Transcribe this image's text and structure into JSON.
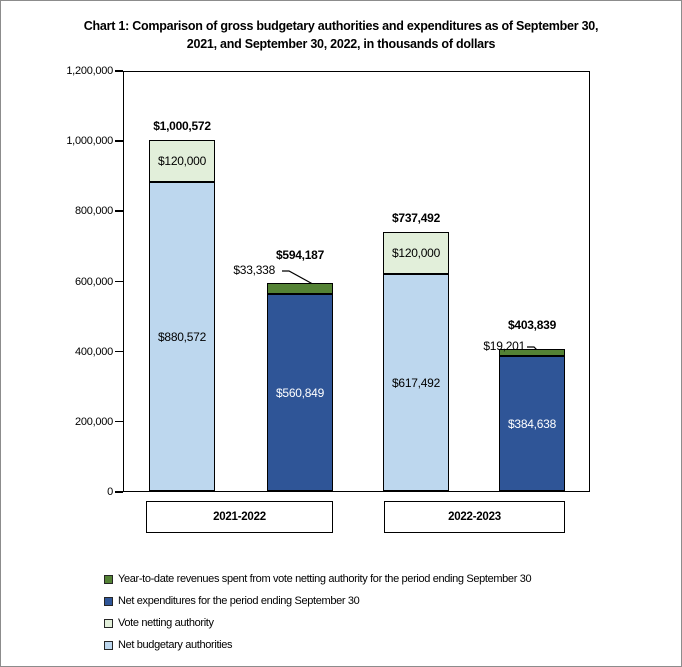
{
  "window": {
    "background": "#FFFFFF",
    "border_color": "#8C8C8C"
  },
  "chart_data": {
    "type": "bar",
    "stacked": true,
    "title": "Chart 1: Comparison of gross budgetary authorities and expenditures as of September 30, 2021, and September 30, 2022, in thousands of dollars",
    "title_lines": [
      "Chart 1: Comparison of gross budgetary authorities and expenditures as of September 30,",
      "2021, and September 30, 2022, in thousands of dollars"
    ],
    "units": "thousands of dollars",
    "ylim": [
      0,
      1200000
    ],
    "y_tick_step": 200000,
    "y_tick_labels": [
      "0",
      "200,000",
      "400,000",
      "600,000",
      "800,000",
      "1,000,000",
      "1,200,000"
    ],
    "grid": false,
    "legend_position": "bottom-left",
    "colors": {
      "net_budgetary_authorities": "#BDD7EE",
      "vote_netting_authority": "#E2EFDA",
      "net_expenditures": "#2F5597",
      "ytd_revenues": "#548235",
      "bar_border": "#000000",
      "text": "#000000"
    },
    "groups": [
      {
        "label": "2021-2022",
        "bars": [
          {
            "name": "gross-budgetary-authorities-2021-2022",
            "total_value": 1000572,
            "total_label": "$1,000,572",
            "segments": [
              {
                "series": "net_budgetary_authorities",
                "value": 880572,
                "label": "$880,572",
                "label_placement": "inside",
                "label_color": "#000000"
              },
              {
                "series": "vote_netting_authority",
                "value": 120000,
                "label": "$120,000",
                "label_placement": "inside",
                "label_color": "#000000"
              }
            ]
          },
          {
            "name": "expenditures-2021-2022",
            "total_value": 594187,
            "total_label": "$594,187",
            "segments": [
              {
                "series": "net_expenditures",
                "value": 560849,
                "label": "$560,849",
                "label_placement": "inside",
                "label_color": "#FFFFFF"
              },
              {
                "series": "ytd_revenues",
                "value": 33338,
                "label": "$33,338",
                "label_placement": "callout",
                "label_color": "#000000"
              }
            ]
          }
        ]
      },
      {
        "label": "2022-2023",
        "bars": [
          {
            "name": "gross-budgetary-authorities-2022-2023",
            "total_value": 737492,
            "total_label": "$737,492",
            "segments": [
              {
                "series": "net_budgetary_authorities",
                "value": 617492,
                "label": "$617,492",
                "label_placement": "inside",
                "label_color": "#000000"
              },
              {
                "series": "vote_netting_authority",
                "value": 120000,
                "label": "$120,000",
                "label_placement": "inside",
                "label_color": "#000000"
              }
            ]
          },
          {
            "name": "expenditures-2022-2023",
            "total_value": 403839,
            "total_label": "$403,839",
            "segments": [
              {
                "series": "net_expenditures",
                "value": 384638,
                "label": "$384,638",
                "label_placement": "inside",
                "label_color": "#FFFFFF"
              },
              {
                "series": "ytd_revenues",
                "value": 19201,
                "label": "$19,201",
                "label_placement": "callout",
                "label_color": "#000000"
              }
            ]
          }
        ]
      }
    ],
    "legend": [
      {
        "series": "ytd_revenues",
        "label": "Year-to-date revenues spent from vote netting authority for the period ending September 30"
      },
      {
        "series": "net_expenditures",
        "label": "Net expenditures for the period ending September 30"
      },
      {
        "series": "vote_netting_authority",
        "label": "Vote netting authority"
      },
      {
        "series": "net_budgetary_authorities",
        "label": "Net budgetary authorities"
      }
    ]
  }
}
